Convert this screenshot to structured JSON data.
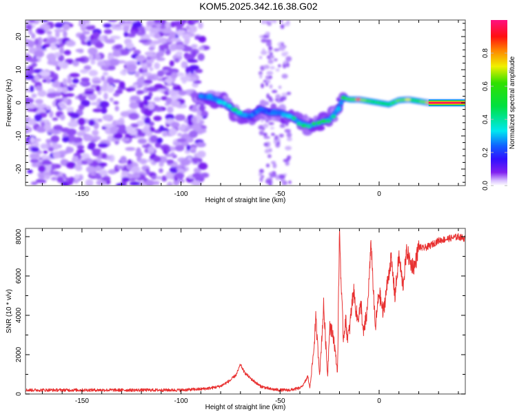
{
  "title": "KOM5.2025.342.16.38.G02",
  "chart_data": [
    {
      "type": "heatmap",
      "name": "spectrogram",
      "title": "KOM5.2025.342.16.38.G02",
      "xlabel": "Height of straight line (km)",
      "ylabel": "Frequency (Hz)",
      "xlim": [
        -178.5,
        43.5
      ],
      "ylim": [
        -25,
        25
      ],
      "xticks": [
        -150,
        -100,
        -50,
        0
      ],
      "yticks": [
        -20,
        -10,
        0,
        10,
        20
      ],
      "grid": false,
      "colorbar": {
        "label": "Normalized spectral amplitude",
        "range": [
          0,
          1
        ],
        "ticks": [
          "0.0",
          "0.2",
          "0.4",
          "0.6",
          "0.8"
        ],
        "colormap": [
          "#ffffff",
          "#e8d8ff",
          "#b080ff",
          "#7a1cf0",
          "#2020ff",
          "#00e8ff",
          "#00e000",
          "#f0f000",
          "#ff8000",
          "#ff1010",
          "#ff1080"
        ]
      },
      "ridge": {
        "description": "frequency track of the dominant signal",
        "x": [
          -90,
          -85,
          -80,
          -75,
          -70,
          -65,
          -60,
          -55,
          -50,
          -45,
          -40,
          -35,
          -30,
          -25,
          -22,
          -20,
          -18,
          -15,
          -10,
          -5,
          0,
          5,
          10,
          15,
          20,
          25,
          30,
          35,
          40,
          43.5
        ],
        "y": [
          2,
          1.5,
          0.5,
          -1.5,
          -3.5,
          -4,
          -2,
          -3,
          -3,
          -4,
          -6,
          -7,
          -6,
          -5,
          -3,
          -1,
          1.5,
          1,
          1,
          0.5,
          0,
          -0.5,
          0.8,
          1,
          0.5,
          0,
          0,
          0,
          0,
          0
        ],
        "amplitude": [
          0.25,
          0.3,
          0.35,
          0.4,
          0.45,
          0.3,
          0.3,
          0.25,
          0.3,
          0.4,
          0.45,
          0.5,
          0.5,
          0.55,
          0.5,
          0.4,
          0.65,
          0.75,
          0.9,
          0.6,
          0.5,
          0.6,
          0.8,
          0.75,
          0.7,
          0.9,
          0.95,
          0.95,
          0.95,
          0.95
        ]
      },
      "noise_region": {
        "x": [
          -178.5,
          -90
        ],
        "amplitude_range": [
          0.0,
          0.15
        ]
      }
    },
    {
      "type": "line",
      "name": "snr",
      "xlabel": "Height of straight line (km)",
      "ylabel": "SNR (10 * v/v)",
      "xlim": [
        -178.5,
        43.5
      ],
      "ylim": [
        0,
        8420
      ],
      "xticks": [
        -150,
        -100,
        -50,
        0
      ],
      "yticks": [
        0,
        2000,
        4000,
        6000,
        8000
      ],
      "grid": false,
      "series": [
        {
          "name": "SNR",
          "color": "#e83030",
          "x": [
            -178.5,
            -160,
            -140,
            -120,
            -100,
            -90,
            -85,
            -80,
            -75,
            -72,
            -70,
            -68,
            -65,
            -60,
            -55,
            -50,
            -45,
            -40,
            -38,
            -36,
            -35,
            -33,
            -32,
            -30,
            -28,
            -26,
            -25,
            -23,
            -21,
            -20,
            -19,
            -18,
            -17,
            -16,
            -15,
            -13,
            -11,
            -9,
            -8,
            -6,
            -4,
            -2,
            0,
            2,
            4,
            6,
            8,
            10,
            12,
            14,
            16,
            18,
            20,
            22,
            25,
            30,
            35,
            40,
            43.5
          ],
          "y": [
            200,
            200,
            200,
            200,
            200,
            250,
            300,
            400,
            700,
            1000,
            1500,
            1100,
            800,
            400,
            250,
            200,
            200,
            300,
            500,
            900,
            300,
            2200,
            3800,
            1000,
            4500,
            900,
            3500,
            2900,
            1100,
            8400,
            5000,
            2800,
            3800,
            2900,
            3200,
            5300,
            3800,
            4500,
            3000,
            4200,
            7700,
            3300,
            5200,
            4100,
            5500,
            6900,
            5000,
            7000,
            5500,
            7300,
            6600,
            6500,
            7500,
            7400,
            7500,
            7800,
            7900,
            8000,
            7900
          ]
        }
      ]
    }
  ]
}
